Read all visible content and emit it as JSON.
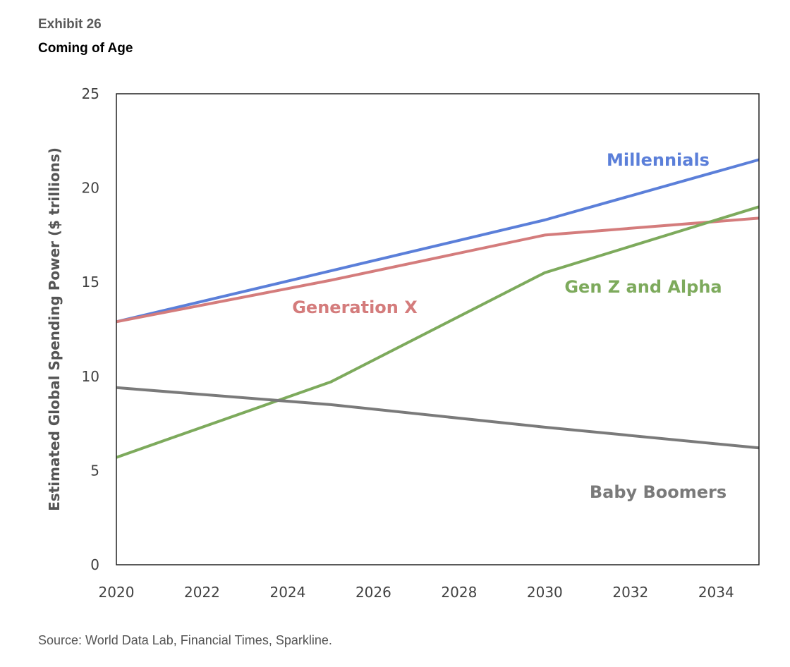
{
  "header": {
    "exhibit": "Exhibit 26",
    "title": "Coming of Age"
  },
  "footer": {
    "source": "Source: World Data Lab, Financial Times, Sparkline."
  },
  "chart_data": {
    "type": "line",
    "title": "",
    "xlabel": "",
    "ylabel": "Estimated Global Spending Power ($ trillions)",
    "xlim": [
      2020,
      2035
    ],
    "ylim": [
      0,
      25
    ],
    "xticks": [
      2020,
      2022,
      2024,
      2026,
      2028,
      2030,
      2032,
      2034
    ],
    "yticks": [
      0,
      5,
      10,
      15,
      20,
      25
    ],
    "grid": false,
    "legend": "inline labels",
    "series": [
      {
        "name": "Millennials",
        "color": "#5b7fd9",
        "x": [
          2020,
          2025,
          2030,
          2035
        ],
        "y": [
          12.9,
          15.6,
          18.3,
          21.5
        ]
      },
      {
        "name": "Generation X",
        "color": "#d47c7c",
        "x": [
          2020,
          2025,
          2030,
          2035
        ],
        "y": [
          12.9,
          15.1,
          17.5,
          18.4
        ]
      },
      {
        "name": "Gen Z and Alpha",
        "color": "#7daa5c",
        "x": [
          2020,
          2025,
          2030,
          2035
        ],
        "y": [
          5.7,
          9.7,
          15.5,
          19.0
        ]
      },
      {
        "name": "Baby Boomers",
        "color": "#7a7a7a",
        "x": [
          2020,
          2025,
          2030,
          2035
        ],
        "y": [
          9.4,
          8.5,
          7.3,
          6.2
        ]
      }
    ]
  }
}
